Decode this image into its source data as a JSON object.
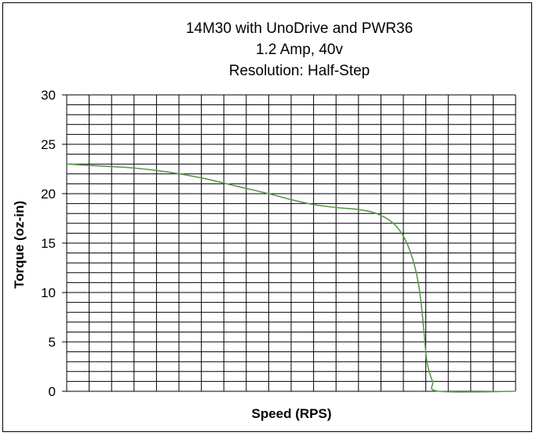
{
  "chart_data": {
    "type": "line",
    "title": [
      "14M30 with UnoDrive and PWR36",
      "1.2 Amp, 40v",
      "Resolution: Half-Step"
    ],
    "xlabel": "Speed (RPS)",
    "ylabel": "Torque (oz-in)",
    "ylim": [
      0,
      30
    ],
    "yticks": [
      "0",
      "5",
      "10",
      "15",
      "20",
      "25",
      "30"
    ],
    "x_unit_gridlines": 20,
    "grid": true,
    "legend": "none",
    "series": [
      {
        "color": "#5a9a4a",
        "points": [
          [
            0.0,
            23.0
          ],
          [
            1.5,
            22.8
          ],
          [
            3.0,
            22.6
          ],
          [
            4.5,
            22.2
          ],
          [
            6.0,
            21.6
          ],
          [
            7.5,
            20.8
          ],
          [
            9.0,
            20.0
          ],
          [
            10.0,
            19.4
          ],
          [
            11.0,
            18.9
          ],
          [
            12.0,
            18.6
          ],
          [
            13.0,
            18.4
          ],
          [
            13.8,
            18.0
          ],
          [
            14.5,
            17.1
          ],
          [
            15.0,
            15.7
          ],
          [
            15.4,
            13.5
          ],
          [
            15.7,
            10.5
          ],
          [
            15.9,
            6.5
          ],
          [
            16.05,
            3.0
          ],
          [
            16.3,
            1.0
          ],
          [
            16.6,
            0.0
          ],
          [
            20.0,
            0.0
          ]
        ]
      }
    ]
  }
}
